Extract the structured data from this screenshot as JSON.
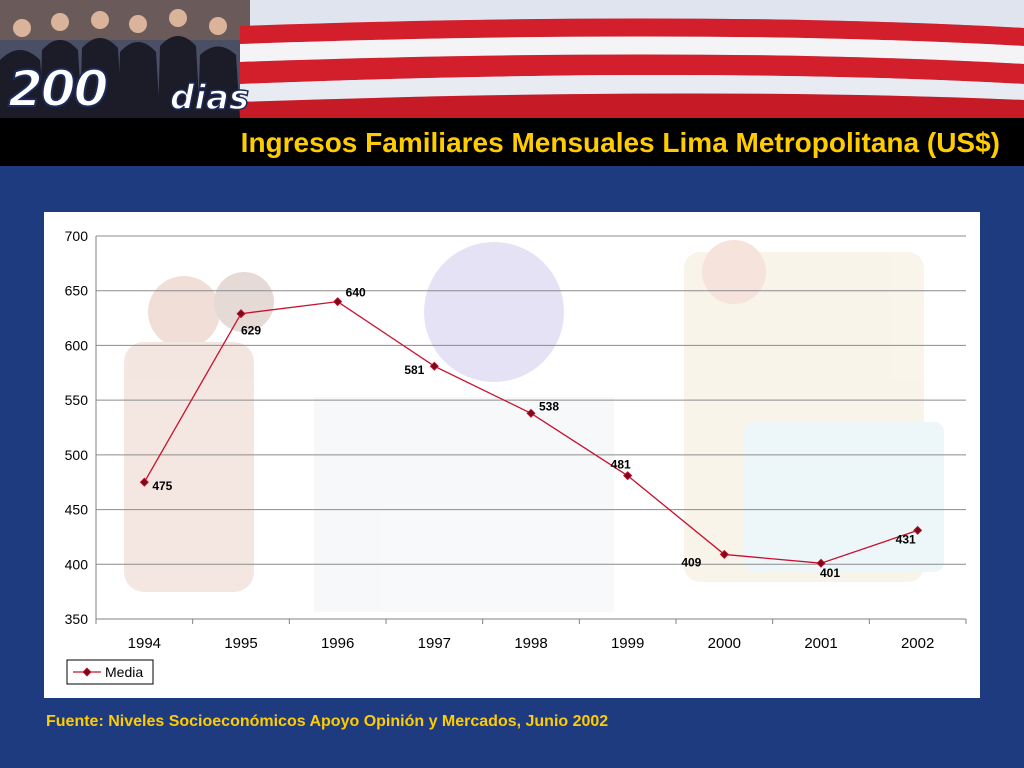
{
  "banner": {
    "logo_number": "200",
    "logo_word": "dias"
  },
  "header": {
    "title": "Ingresos Familiares Mensuales Lima Metropolitana (US$)"
  },
  "footer": {
    "source": "Fuente: Niveles Socioeconómicos Apoyo Opinión y Mercados, Junio 2002"
  },
  "colors": {
    "background": "#1f3b80",
    "title": "#ffcc00",
    "series_line": "#c8102e",
    "grid": "#8c8c8c"
  },
  "chart_data": {
    "type": "line",
    "title": "",
    "xlabel": "",
    "ylabel": "",
    "categories": [
      "1994",
      "1995",
      "1996",
      "1997",
      "1998",
      "1999",
      "2000",
      "2001",
      "2002"
    ],
    "series": [
      {
        "name": "Media",
        "values": [
          475,
          629,
          640,
          581,
          538,
          481,
          409,
          401,
          431
        ],
        "labels": [
          "475",
          "629",
          "640",
          "581",
          "538",
          "481",
          "409",
          "401",
          "431"
        ]
      }
    ],
    "ylim": [
      350,
      700
    ],
    "yticks": [
      350,
      400,
      450,
      500,
      550,
      600,
      650,
      700
    ],
    "grid": true,
    "legend": "bottom-left"
  }
}
